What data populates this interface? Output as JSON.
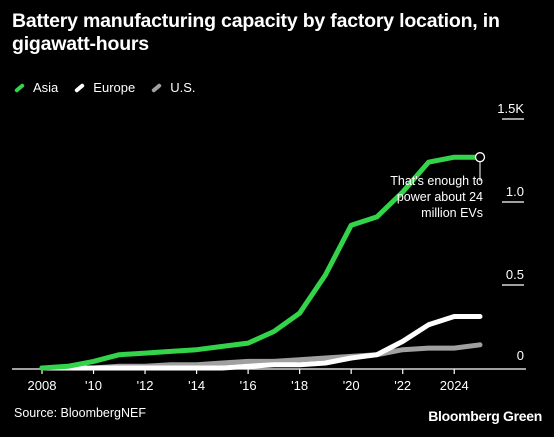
{
  "chart_data": {
    "type": "line",
    "title": "Battery manufacturing capacity by factory location, in gigawatt-hours",
    "x": [
      2008,
      2009,
      2010,
      2011,
      2012,
      2013,
      2014,
      2015,
      2016,
      2017,
      2018,
      2019,
      2020,
      2021,
      2022,
      2023,
      2024,
      2025
    ],
    "x_tick_values": [
      2008,
      2010,
      2012,
      2014,
      2016,
      2018,
      2020,
      2022,
      2024
    ],
    "x_tick_labels": [
      "2008",
      "'10",
      "'12",
      "'14",
      "'16",
      "'18",
      "'20",
      "'22",
      "2024"
    ],
    "y_tick_values": [
      0,
      0.5,
      1.0,
      1.5
    ],
    "y_tick_labels": [
      "0",
      "0.5",
      "1.0",
      "1.5K"
    ],
    "y_unit": "thousand GWh",
    "ylim": [
      0,
      1.5
    ],
    "xlim": [
      2008,
      2025
    ],
    "grid": false,
    "legend_position": "top-left",
    "series": [
      {
        "name": "Asia",
        "color": "#33d44a",
        "values": [
          0.0,
          0.01,
          0.04,
          0.08,
          0.09,
          0.1,
          0.11,
          0.13,
          0.15,
          0.22,
          0.33,
          0.56,
          0.86,
          0.91,
          1.06,
          1.24,
          1.27,
          1.27
        ]
      },
      {
        "name": "Europe",
        "color": "#ffffff",
        "values": [
          0.0,
          0.0,
          0.0,
          0.0,
          0.0,
          0.0,
          0.0,
          0.0,
          0.01,
          0.02,
          0.02,
          0.03,
          0.06,
          0.08,
          0.16,
          0.26,
          0.31,
          0.31
        ]
      },
      {
        "name": "U.S.",
        "color": "#a0a0a0",
        "values": [
          0.0,
          0.0,
          0.0,
          0.01,
          0.01,
          0.02,
          0.02,
          0.03,
          0.04,
          0.04,
          0.05,
          0.06,
          0.07,
          0.08,
          0.11,
          0.12,
          0.12,
          0.14
        ]
      }
    ],
    "annotation": {
      "series": "Asia",
      "x": 2025,
      "lines": [
        "That's enough to",
        "power about 24",
        "million EVs"
      ]
    }
  },
  "source": "Source: BloombergNEF",
  "brand": "Bloomberg Green"
}
